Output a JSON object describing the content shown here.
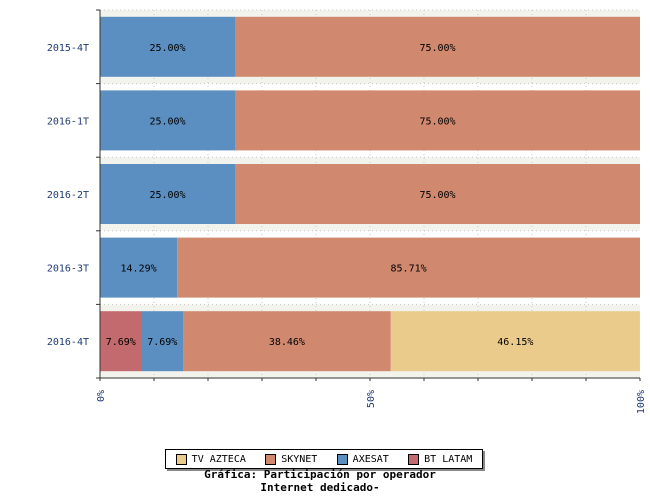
{
  "chart_data": {
    "type": "bar",
    "orientation": "horizontal",
    "stacked": true,
    "normalized_percent": true,
    "categories": [
      "2015-4T",
      "2016-1T",
      "2016-2T",
      "2016-3T",
      "2016-4T"
    ],
    "series": [
      {
        "name": "BT LATAM",
        "color": "#c26a6d",
        "values": [
          0,
          0,
          0,
          0,
          7.69
        ],
        "labels": [
          "",
          "",
          "",
          "",
          "7.69%"
        ]
      },
      {
        "name": "AXESAT",
        "color": "#5b8fc1",
        "values": [
          25.0,
          25.0,
          25.0,
          14.29,
          7.69
        ],
        "labels": [
          "25.00%",
          "25.00%",
          "25.00%",
          "14.29%",
          "7.69%"
        ]
      },
      {
        "name": "SKYNET",
        "color": "#d0886e",
        "values": [
          75.0,
          75.0,
          75.0,
          85.71,
          38.46
        ],
        "labels": [
          "75.00%",
          "75.00%",
          "75.00%",
          "85.71%",
          "38.46%"
        ]
      },
      {
        "name": "TV AZTECA",
        "color": "#ebcb8c",
        "values": [
          0,
          0,
          0,
          0,
          46.15
        ],
        "labels": [
          "",
          "",
          "",
          "",
          "46.15%"
        ]
      }
    ],
    "x_ticks": [
      "0%",
      "50%",
      "100%"
    ],
    "xlim": [
      0,
      100
    ],
    "grid": true,
    "legend_position": "bottom",
    "legend_order": [
      "TV AZTECA",
      "SKYNET",
      "AXESAT",
      "BT LATAM"
    ],
    "caption_lines": [
      "Gráfica: Participación por operador",
      "Internet dedicado-"
    ]
  }
}
